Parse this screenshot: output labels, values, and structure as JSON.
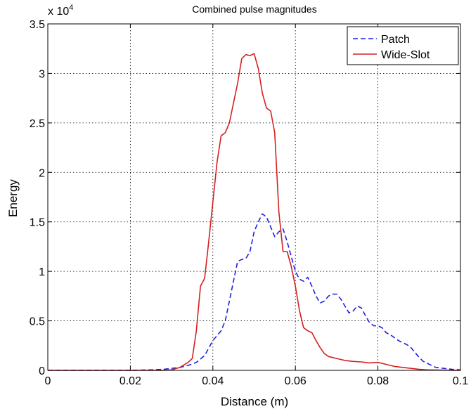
{
  "chart_data": {
    "type": "line",
    "title": "Combined pulse magnitudes",
    "xlabel": "Distance (m)",
    "ylabel": "Energy",
    "y_multiplier_label": "x 10",
    "y_multiplier_exponent": "4",
    "xlim": [
      0,
      0.1
    ],
    "ylim": [
      0,
      35000
    ],
    "x_ticks": [
      0,
      0.02,
      0.04,
      0.06,
      0.08,
      0.1
    ],
    "x_tick_labels": [
      "0",
      "0.02",
      "0.04",
      "0.06",
      "0.08",
      "0.1"
    ],
    "y_ticks": [
      0,
      5000,
      10000,
      15000,
      20000,
      25000,
      30000,
      35000
    ],
    "y_tick_labels": [
      "0",
      "0.5",
      "1",
      "1.5",
      "2",
      "2.5",
      "3",
      "3.5"
    ],
    "grid": true,
    "legend_position": "top-right",
    "series": [
      {
        "name": "Patch",
        "color": "#2020e0",
        "style": "dashed",
        "x": [
          0,
          0.02,
          0.025,
          0.028,
          0.03,
          0.032,
          0.034,
          0.036,
          0.038,
          0.04,
          0.042,
          0.043,
          0.044,
          0.045,
          0.046,
          0.047,
          0.048,
          0.049,
          0.05,
          0.051,
          0.052,
          0.053,
          0.054,
          0.055,
          0.056,
          0.057,
          0.058,
          0.059,
          0.06,
          0.061,
          0.062,
          0.063,
          0.064,
          0.065,
          0.066,
          0.067,
          0.068,
          0.069,
          0.07,
          0.071,
          0.072,
          0.073,
          0.074,
          0.075,
          0.076,
          0.077,
          0.078,
          0.079,
          0.08,
          0.081,
          0.082,
          0.083,
          0.084,
          0.085,
          0.086,
          0.087,
          0.088,
          0.089,
          0.09,
          0.091,
          0.092,
          0.093,
          0.094,
          0.095,
          0.096,
          0.097,
          0.098,
          0.099,
          0.1
        ],
        "values": [
          0,
          0,
          50,
          100,
          200,
          300,
          500,
          800,
          1500,
          3000,
          4000,
          5000,
          7000,
          9000,
          11000,
          11200,
          11300,
          12000,
          14000,
          15000,
          15800,
          15500,
          14500,
          13500,
          14000,
          14300,
          13000,
          11500,
          10000,
          9200,
          9000,
          9400,
          8500,
          7500,
          6800,
          7000,
          7500,
          7700,
          7700,
          7200,
          6500,
          5800,
          6000,
          6500,
          6300,
          5500,
          4800,
          4500,
          4500,
          4300,
          3800,
          3600,
          3300,
          3000,
          2800,
          2600,
          2300,
          1800,
          1300,
          900,
          700,
          500,
          300,
          250,
          200,
          150,
          100,
          80,
          50
        ]
      },
      {
        "name": "Wide-Slot",
        "color": "#d42020",
        "style": "solid",
        "x": [
          0,
          0.02,
          0.028,
          0.03,
          0.032,
          0.034,
          0.035,
          0.036,
          0.037,
          0.038,
          0.039,
          0.04,
          0.041,
          0.042,
          0.043,
          0.044,
          0.045,
          0.046,
          0.047,
          0.048,
          0.049,
          0.05,
          0.051,
          0.052,
          0.053,
          0.054,
          0.055,
          0.056,
          0.057,
          0.058,
          0.059,
          0.06,
          0.061,
          0.062,
          0.063,
          0.064,
          0.065,
          0.066,
          0.067,
          0.068,
          0.069,
          0.07,
          0.072,
          0.074,
          0.076,
          0.078,
          0.08,
          0.082,
          0.084,
          0.086,
          0.088,
          0.09,
          0.092,
          0.094,
          0.096,
          0.098,
          0.1
        ],
        "values": [
          0,
          0,
          0,
          50,
          300,
          800,
          1200,
          4000,
          8500,
          9300,
          13000,
          17000,
          21000,
          23700,
          24000,
          25000,
          27000,
          29000,
          31500,
          31900,
          31800,
          32000,
          30500,
          28000,
          26500,
          26200,
          24000,
          16000,
          12000,
          12000,
          10500,
          8500,
          6000,
          4300,
          4000,
          3800,
          3000,
          2300,
          1700,
          1400,
          1300,
          1200,
          1000,
          900,
          850,
          750,
          800,
          600,
          400,
          300,
          200,
          100,
          50,
          30,
          20,
          10,
          0
        ]
      }
    ]
  }
}
